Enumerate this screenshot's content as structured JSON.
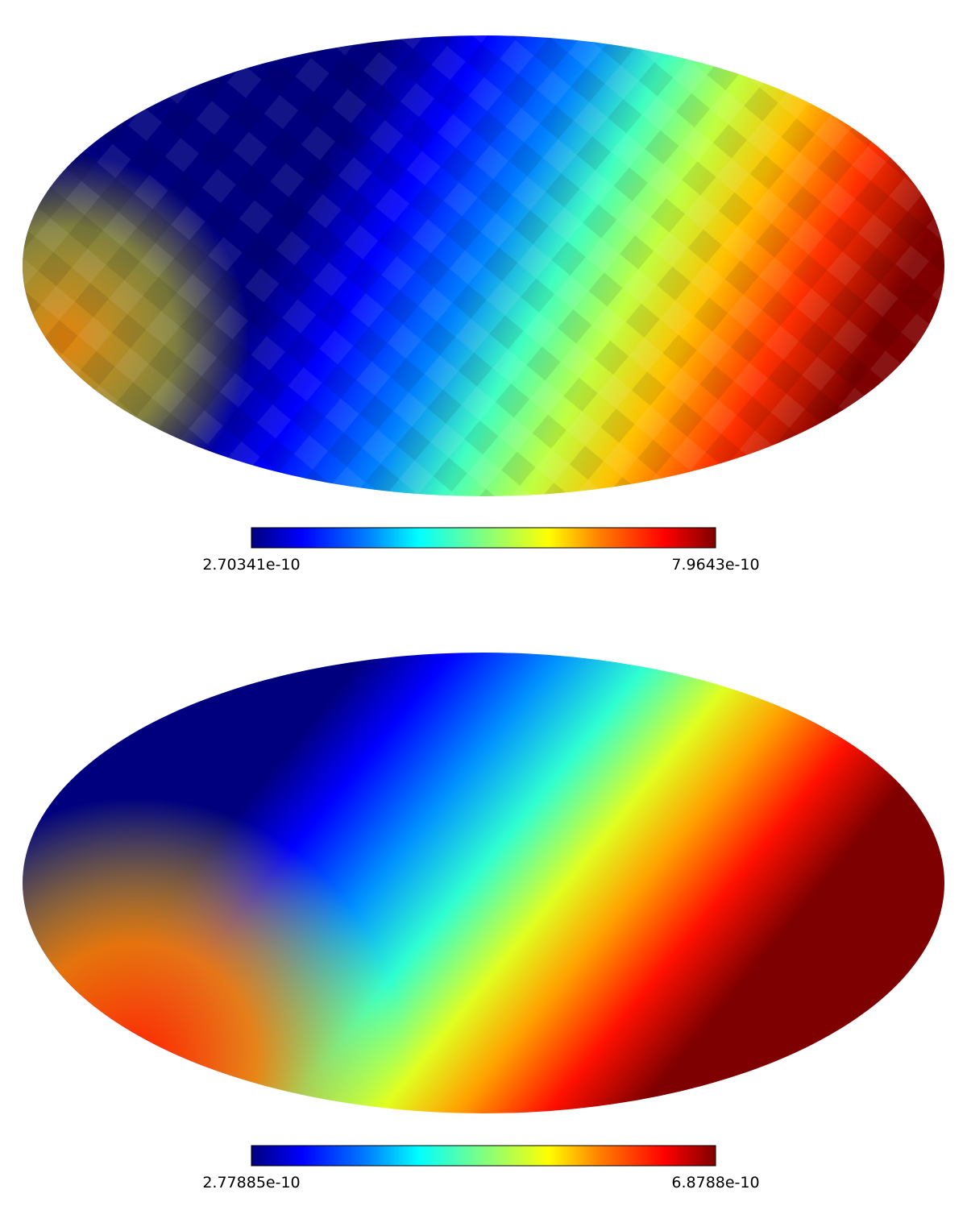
{
  "maps": [
    {
      "colorbar": {
        "min": "2.70341e-10",
        "max": "7.9643e-10"
      }
    },
    {
      "colorbar": {
        "min": "2.77885e-10",
        "max": "6.8788e-10"
      }
    }
  ]
}
